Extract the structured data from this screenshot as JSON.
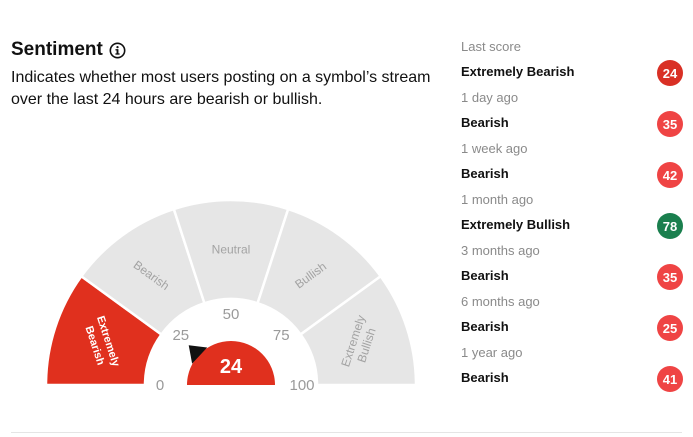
{
  "header": {
    "title": "Sentiment",
    "info_icon": "info-circle-icon",
    "description": "Indicates whether most users posting on a symbol’s stream over the last 24 hours are bearish or bullish."
  },
  "gauge": {
    "score": 24,
    "min": 0,
    "max": 100,
    "pointer_icon": "triangle-pointer-icon",
    "active_color": "#e0301e",
    "inactive_color": "#e6e6e6",
    "segments": [
      {
        "label_lines": [
          "Extremely",
          "Bearish"
        ],
        "from": 0,
        "to": 20,
        "active": true
      },
      {
        "label_lines": [
          "Bearish"
        ],
        "from": 20,
        "to": 40,
        "active": false
      },
      {
        "label_lines": [
          "Neutral"
        ],
        "from": 40,
        "to": 60,
        "active": false
      },
      {
        "label_lines": [
          "Bullish"
        ],
        "from": 60,
        "to": 80,
        "active": false
      },
      {
        "label_lines": [
          "Extremely",
          "Bullish"
        ],
        "from": 80,
        "to": 100,
        "active": false
      }
    ],
    "ticks": [
      "0",
      "25",
      "50",
      "75",
      "100"
    ]
  },
  "history": [
    {
      "period": "Last score",
      "sentiment": "Extremely Bearish",
      "score": "24",
      "color": "#d93025"
    },
    {
      "period": "1 day ago",
      "sentiment": "Bearish",
      "score": "35",
      "color": "#ef4444"
    },
    {
      "period": "1 week ago",
      "sentiment": "Bearish",
      "score": "42",
      "color": "#ef4444"
    },
    {
      "period": "1 month ago",
      "sentiment": "Extremely Bullish",
      "score": "78",
      "color": "#1a7f4e"
    },
    {
      "period": "3 months ago",
      "sentiment": "Bearish",
      "score": "35",
      "color": "#ef4444"
    },
    {
      "period": "6 months ago",
      "sentiment": "Bearish",
      "score": "25",
      "color": "#ef4444"
    },
    {
      "period": "1 year ago",
      "sentiment": "Bearish",
      "score": "41",
      "color": "#ef4444"
    }
  ]
}
